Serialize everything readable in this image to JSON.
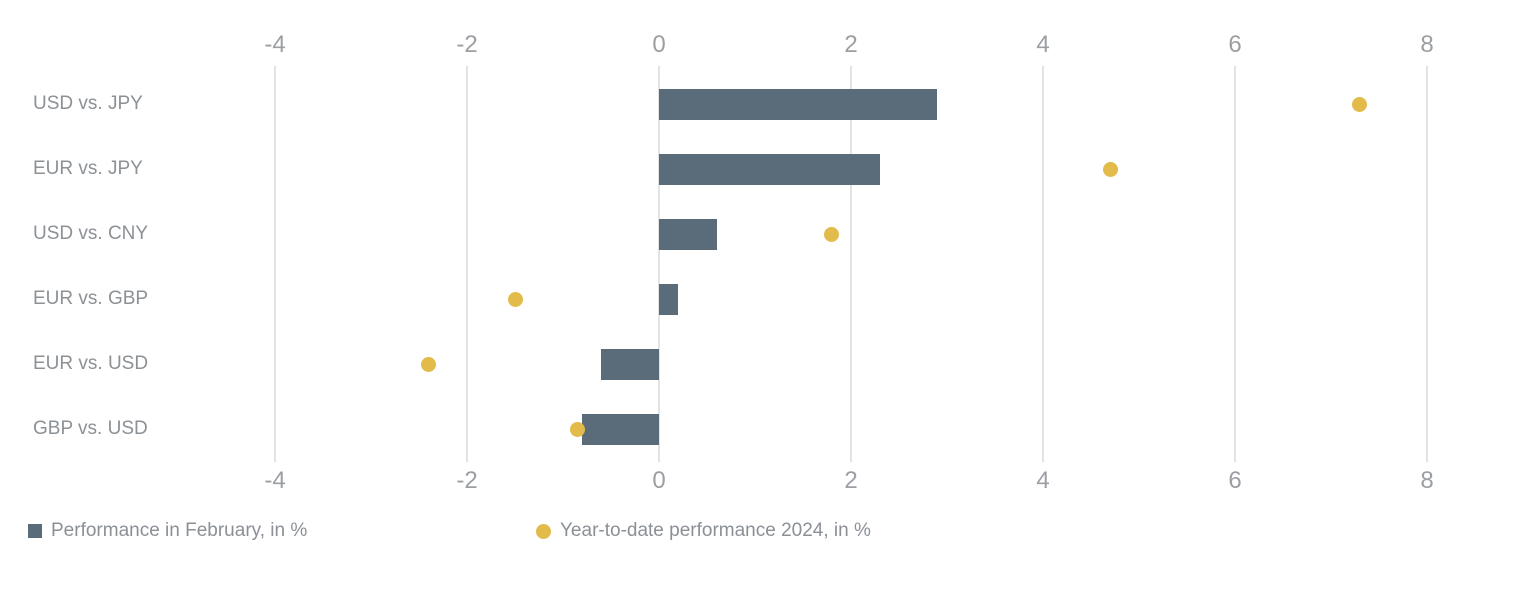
{
  "chart_data": {
    "type": "bar",
    "orientation": "horizontal",
    "title": "",
    "xlabel": "",
    "ylabel": "",
    "categories": [
      "USD vs. JPY",
      "EUR vs. JPY",
      "USD vs. CNY",
      "EUR vs. GBP",
      "EUR vs. USD",
      "GBP vs. USD"
    ],
    "series": [
      {
        "name": "Performance in February, in %",
        "type": "bar",
        "marker": "square",
        "color": "#5a6c79",
        "values": [
          2.9,
          2.3,
          0.6,
          0.2,
          -0.6,
          -0.8
        ]
      },
      {
        "name": "Year-to-date performance 2024, in %",
        "type": "scatter",
        "marker": "circle",
        "color": "#e2bb4a",
        "values": [
          7.3,
          4.7,
          1.8,
          -1.5,
          -2.4,
          -0.85
        ]
      }
    ],
    "x_tick_labels": [
      "-4",
      "-2",
      "0",
      "2",
      "4",
      "6",
      "8"
    ],
    "x_tick_values": [
      -4,
      -2,
      0,
      2,
      4,
      6,
      8
    ],
    "xlim": [
      -4,
      8
    ],
    "grid": "vertical gridlines only",
    "axis_labels_position": "top and bottom",
    "legend_position": "bottom-left"
  },
  "colors": {
    "bar": "#5a6c79",
    "dot": "#e2bb4a",
    "gridline": "#e3e3e3",
    "tick_text": "#9b9fa3",
    "category_text": "#8c9196",
    "legend_text": "#8a9096",
    "background": "#ffffff"
  }
}
